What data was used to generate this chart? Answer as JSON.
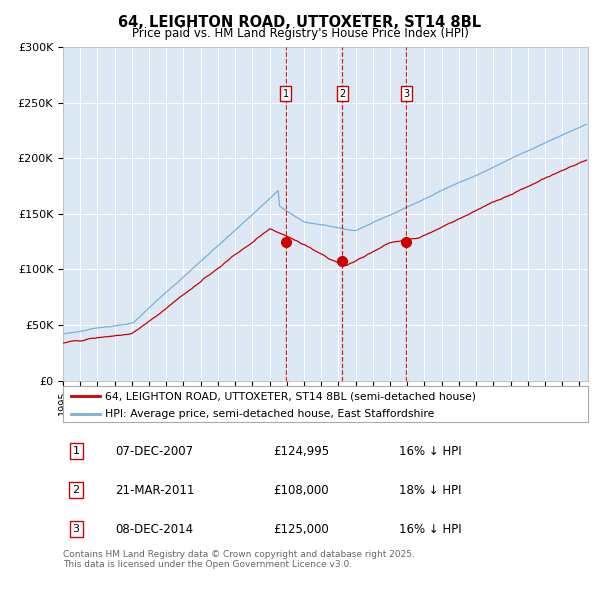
{
  "title": "64, LEIGHTON ROAD, UTTOXETER, ST14 8BL",
  "subtitle": "Price paid vs. HM Land Registry's House Price Index (HPI)",
  "ylim": [
    0,
    300000
  ],
  "yticks": [
    0,
    50000,
    100000,
    150000,
    200000,
    250000,
    300000
  ],
  "ytick_labels": [
    "£0",
    "£50K",
    "£100K",
    "£150K",
    "£200K",
    "£250K",
    "£300K"
  ],
  "xlim_start": 1995.0,
  "xlim_end": 2025.5,
  "background_color": "#dce9f5",
  "red_line_color": "#cc0000",
  "blue_line_color": "#7bafd4",
  "sale_dates": [
    2007.93,
    2011.22,
    2014.93
  ],
  "sale_labels": [
    "1",
    "2",
    "3"
  ],
  "sale_prices": [
    124995,
    108000,
    125000
  ],
  "legend_red": "64, LEIGHTON ROAD, UTTOXETER, ST14 8BL (semi-detached house)",
  "legend_blue": "HPI: Average price, semi-detached house, East Staffordshire",
  "table_entries": [
    {
      "label": "1",
      "date": "07-DEC-2007",
      "price": "£124,995",
      "note": "16% ↓ HPI"
    },
    {
      "label": "2",
      "date": "21-MAR-2011",
      "price": "£108,000",
      "note": "18% ↓ HPI"
    },
    {
      "label": "3",
      "date": "08-DEC-2014",
      "price": "£125,000",
      "note": "16% ↓ HPI"
    }
  ],
  "footnote": "Contains HM Land Registry data © Crown copyright and database right 2025.\nThis data is licensed under the Open Government Licence v3.0."
}
